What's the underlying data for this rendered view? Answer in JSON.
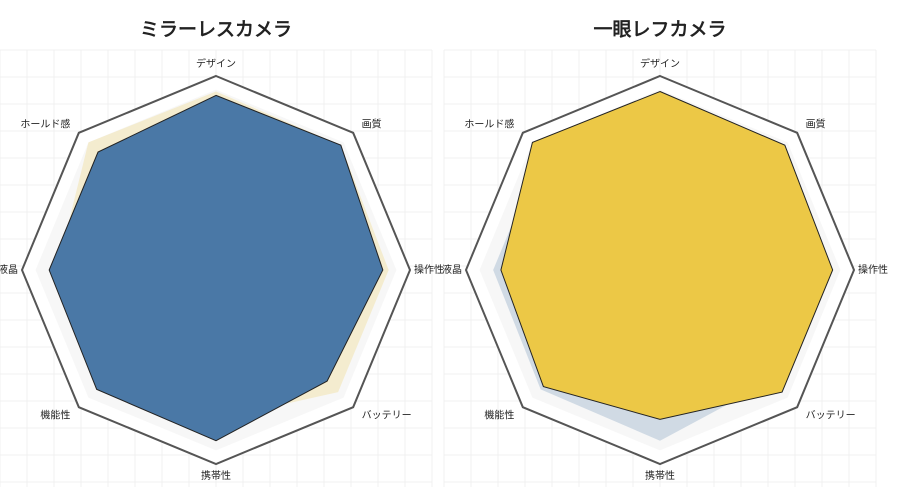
{
  "chart_data": [
    {
      "type": "radar",
      "title": "ミラーレスカメラ",
      "categories": [
        "デザイン",
        "画質",
        "操作性",
        "バッテリー",
        "携帯性",
        "機能性",
        "液晶",
        "ホールド感"
      ],
      "values": [
        90,
        91,
        86,
        81,
        88,
        87,
        86,
        86
      ],
      "color": "#4a78a6",
      "rlim": [
        0,
        100
      ]
    },
    {
      "type": "radar",
      "title": "一眼レフカメラ",
      "categories": [
        "デザイン",
        "画質",
        "操作性",
        "バッテリー",
        "携帯性",
        "機能性",
        "液晶",
        "ホールド感"
      ],
      "values": [
        92,
        91,
        89,
        89,
        77,
        85,
        82,
        93
      ],
      "color": "#ecc846",
      "rlim": [
        0,
        100
      ]
    }
  ]
}
